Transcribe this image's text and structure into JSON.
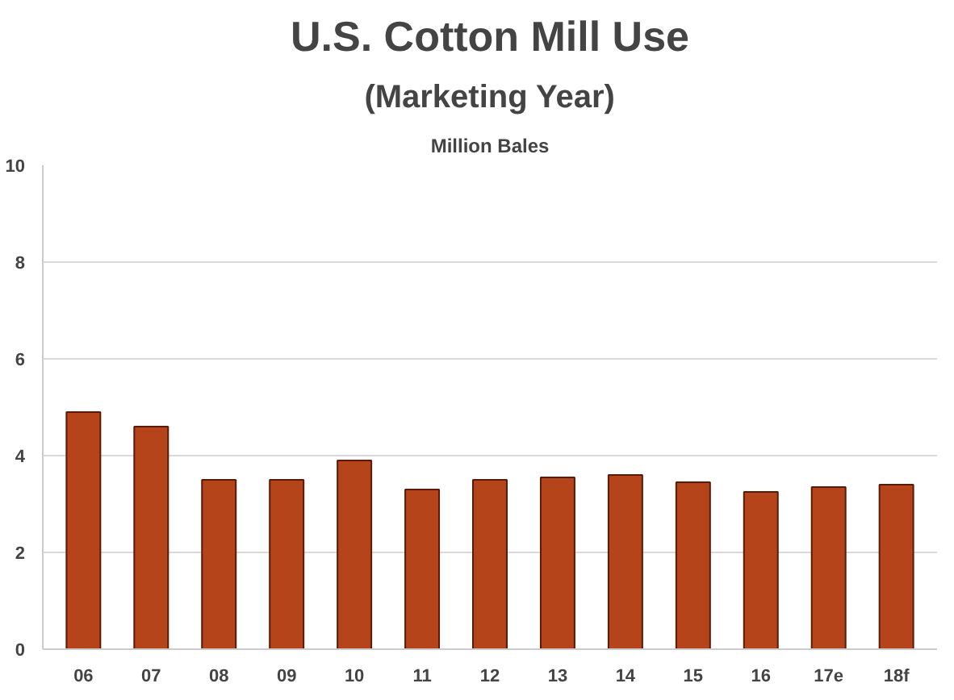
{
  "chart_data": {
    "type": "bar",
    "title": "U.S. Cotton Mill Use",
    "subtitle": "(Marketing Year)",
    "ylabel": "Million Bales",
    "categories": [
      "06",
      "07",
      "08",
      "09",
      "10",
      "11",
      "12",
      "13",
      "14",
      "15",
      "16",
      "17e",
      "18f"
    ],
    "values": [
      4.9,
      4.6,
      3.5,
      3.5,
      3.9,
      3.3,
      3.5,
      3.55,
      3.6,
      3.45,
      3.25,
      3.35,
      3.4
    ],
    "color": "#b5441a",
    "ylim": [
      0,
      10
    ],
    "yticks": [
      0,
      2,
      4,
      6,
      8,
      10
    ],
    "grid": "y"
  }
}
